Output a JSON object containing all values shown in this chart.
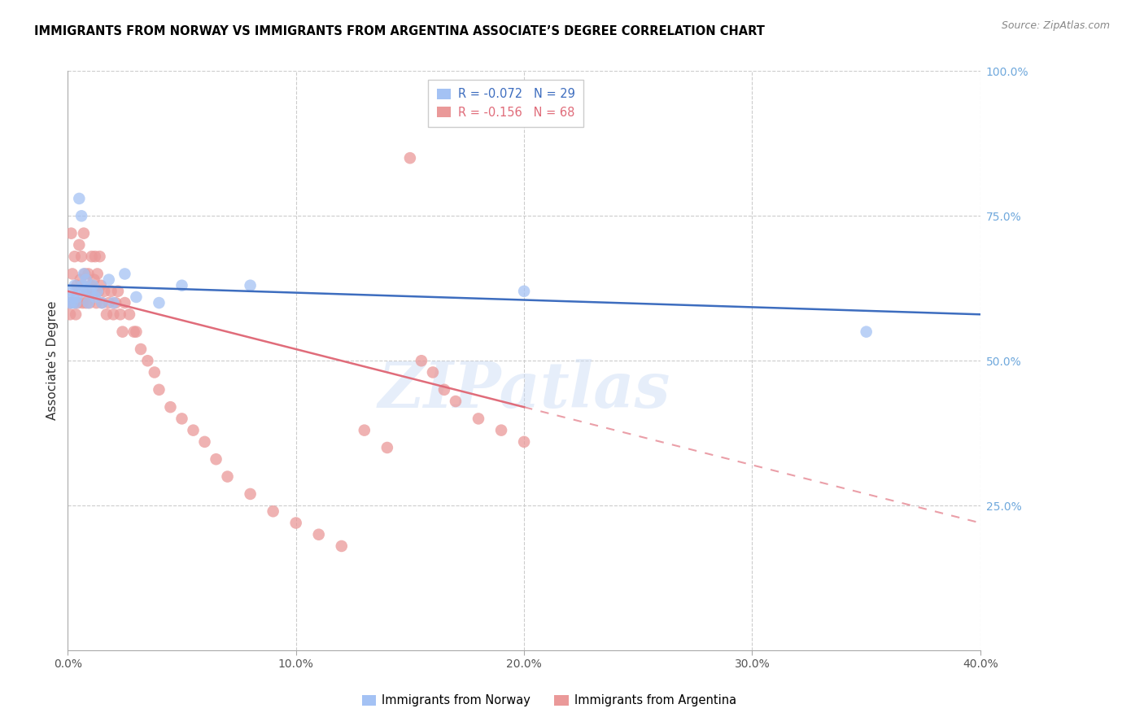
{
  "title": "IMMIGRANTS FROM NORWAY VS IMMIGRANTS FROM ARGENTINA ASSOCIATE’S DEGREE CORRELATION CHART",
  "source": "Source: ZipAtlas.com",
  "ylabel": "Associate's Degree",
  "xlim": [
    0.0,
    40.0
  ],
  "ylim": [
    0.0,
    100.0
  ],
  "norway_color": "#a4c2f4",
  "argentina_color": "#ea9999",
  "norway_line_color": "#3d6dbf",
  "argentina_line_color": "#e06c7a",
  "norway_R": -0.072,
  "norway_N": 29,
  "argentina_R": -0.156,
  "argentina_N": 68,
  "watermark": "ZIPatlas",
  "norway_x": [
    0.1,
    0.15,
    0.2,
    0.25,
    0.3,
    0.35,
    0.4,
    0.5,
    0.55,
    0.6,
    0.65,
    0.7,
    0.75,
    0.8,
    0.9,
    1.0,
    1.1,
    1.2,
    1.3,
    1.5,
    1.8,
    2.0,
    2.5,
    3.0,
    4.0,
    5.0,
    8.0,
    20.0,
    35.0
  ],
  "norway_y": [
    60,
    62,
    60,
    61,
    63,
    60,
    61,
    78,
    62,
    75,
    63,
    65,
    62,
    64,
    60,
    62,
    63,
    61,
    62,
    60,
    64,
    60,
    65,
    61,
    60,
    63,
    63,
    62,
    55
  ],
  "argentina_x": [
    0.05,
    0.1,
    0.15,
    0.2,
    0.25,
    0.3,
    0.35,
    0.4,
    0.45,
    0.5,
    0.55,
    0.6,
    0.65,
    0.7,
    0.75,
    0.8,
    0.85,
    0.9,
    0.95,
    1.0,
    1.05,
    1.1,
    1.15,
    1.2,
    1.25,
    1.3,
    1.35,
    1.4,
    1.45,
    1.5,
    1.6,
    1.7,
    1.8,
    1.9,
    2.0,
    2.1,
    2.2,
    2.3,
    2.4,
    2.5,
    2.7,
    2.9,
    3.0,
    3.2,
    3.5,
    3.8,
    4.0,
    4.5,
    5.0,
    5.5,
    6.0,
    6.5,
    7.0,
    8.0,
    9.0,
    10.0,
    11.0,
    12.0,
    13.0,
    14.0,
    15.0,
    15.5,
    16.0,
    16.5,
    17.0,
    18.0,
    19.0,
    20.0
  ],
  "argentina_y": [
    60,
    58,
    72,
    65,
    60,
    68,
    58,
    63,
    60,
    70,
    64,
    68,
    60,
    72,
    65,
    60,
    62,
    65,
    60,
    63,
    68,
    62,
    64,
    68,
    60,
    65,
    62,
    68,
    63,
    60,
    62,
    58,
    60,
    62,
    58,
    60,
    62,
    58,
    55,
    60,
    58,
    55,
    55,
    52,
    50,
    48,
    45,
    42,
    40,
    38,
    36,
    33,
    30,
    27,
    24,
    22,
    20,
    18,
    38,
    35,
    85,
    50,
    48,
    45,
    43,
    40,
    38,
    36
  ],
  "norway_trend_x0": 0.0,
  "norway_trend_y0": 63.0,
  "norway_trend_x1": 40.0,
  "norway_trend_y1": 58.0,
  "argentina_trend_x0": 0.0,
  "argentina_trend_y0": 62.0,
  "argentina_trend_x1": 40.0,
  "argentina_trend_y1": 22.0,
  "argentina_solid_end": 20.0
}
